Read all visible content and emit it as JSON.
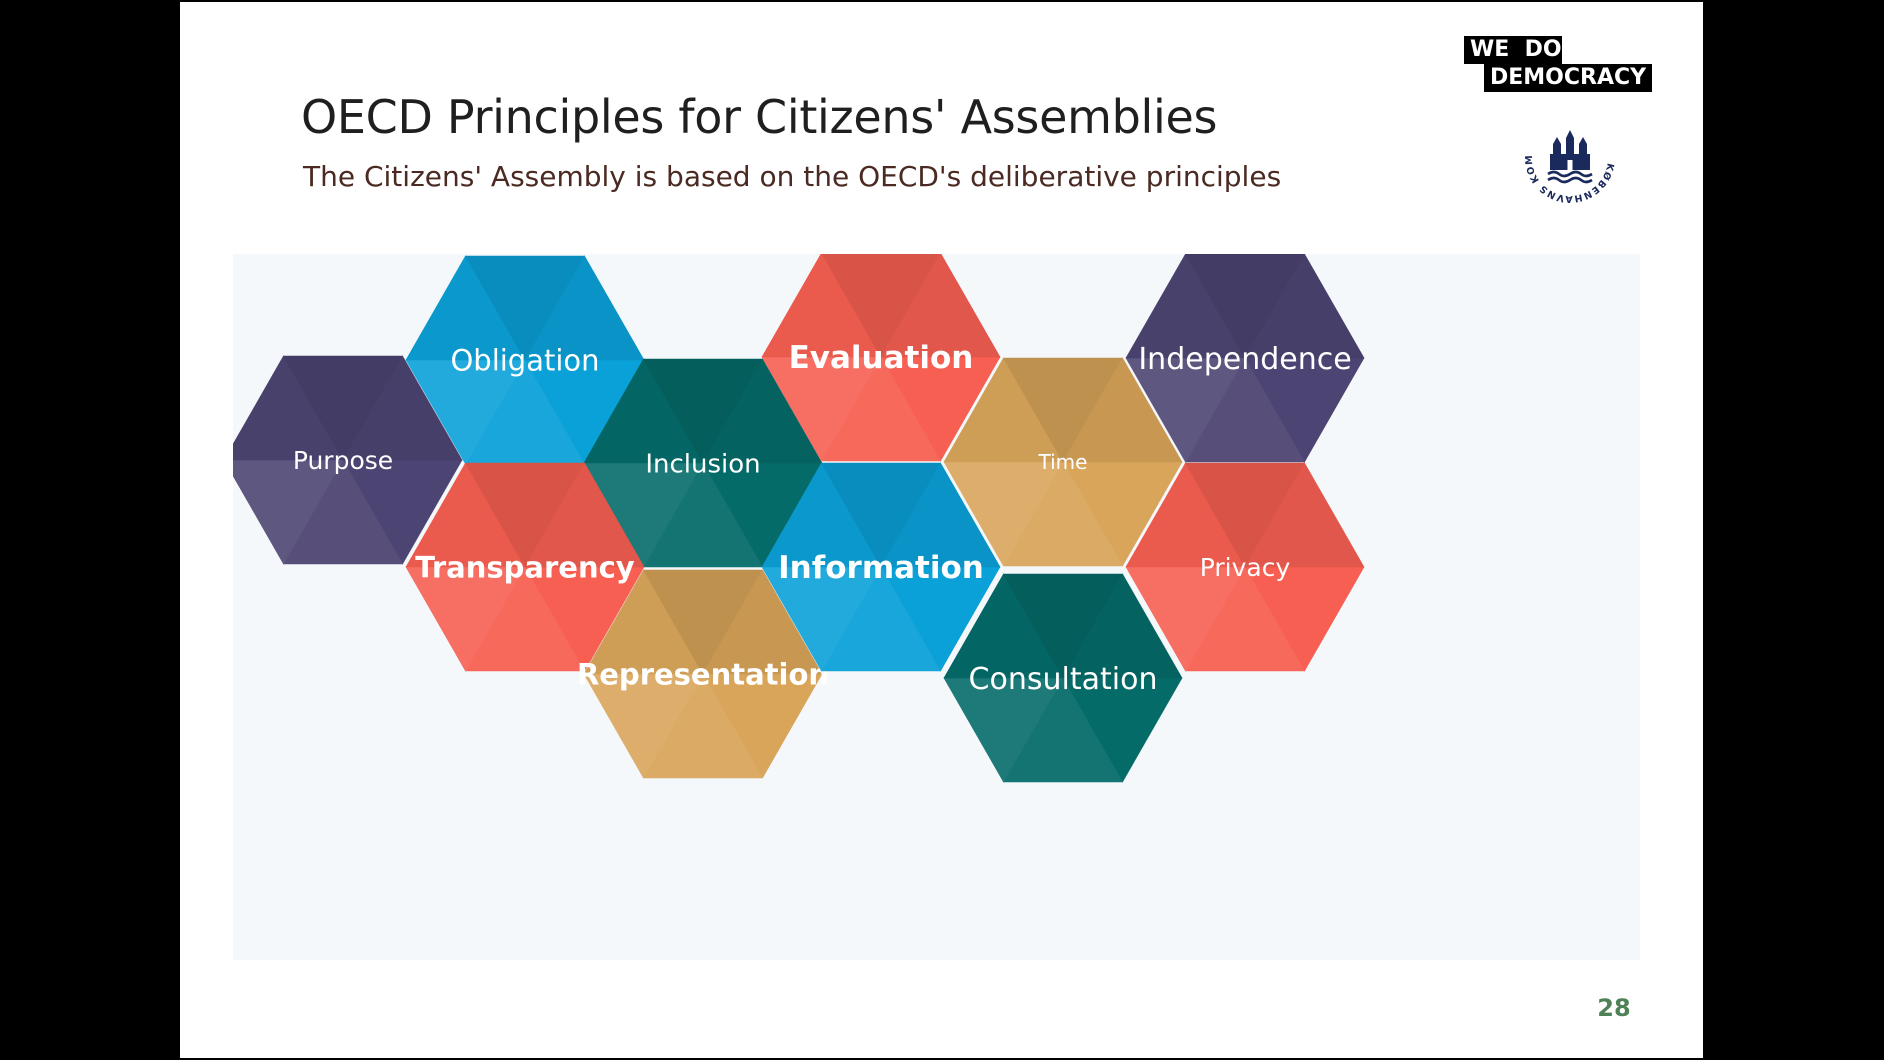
{
  "slide": {
    "title": "OECD Principles for Citizens' Assemblies",
    "subtitle": "The Citizens' Assembly is based on the OECD's deliberative principles",
    "page_number": "28"
  },
  "logos": {
    "wdd_line1": "WE  DO",
    "wdd_line2": "DEMOCRACY",
    "kk_ring_text": "KØBENHAVNS KOMMUNE"
  },
  "colors": {
    "purple": "#4c4472",
    "blue": "#0aa0d8",
    "teal": "#046b69",
    "coral": "#f65f51",
    "gold": "#d9a55a",
    "page_number": "#4f8156"
  },
  "principles": [
    {
      "label": "Purpose",
      "color": "purple"
    },
    {
      "label": "Obligation",
      "color": "blue"
    },
    {
      "label": "Inclusion",
      "color": "teal"
    },
    {
      "label": "Transparency",
      "color": "coral"
    },
    {
      "label": "Representation",
      "color": "gold"
    },
    {
      "label": "Evaluation",
      "color": "coral"
    },
    {
      "label": "Information",
      "color": "blue"
    },
    {
      "label": "Time",
      "color": "gold"
    },
    {
      "label": "Consultation",
      "color": "teal"
    },
    {
      "label": "Independence",
      "color": "purple"
    },
    {
      "label": "Privacy",
      "color": "coral"
    }
  ]
}
